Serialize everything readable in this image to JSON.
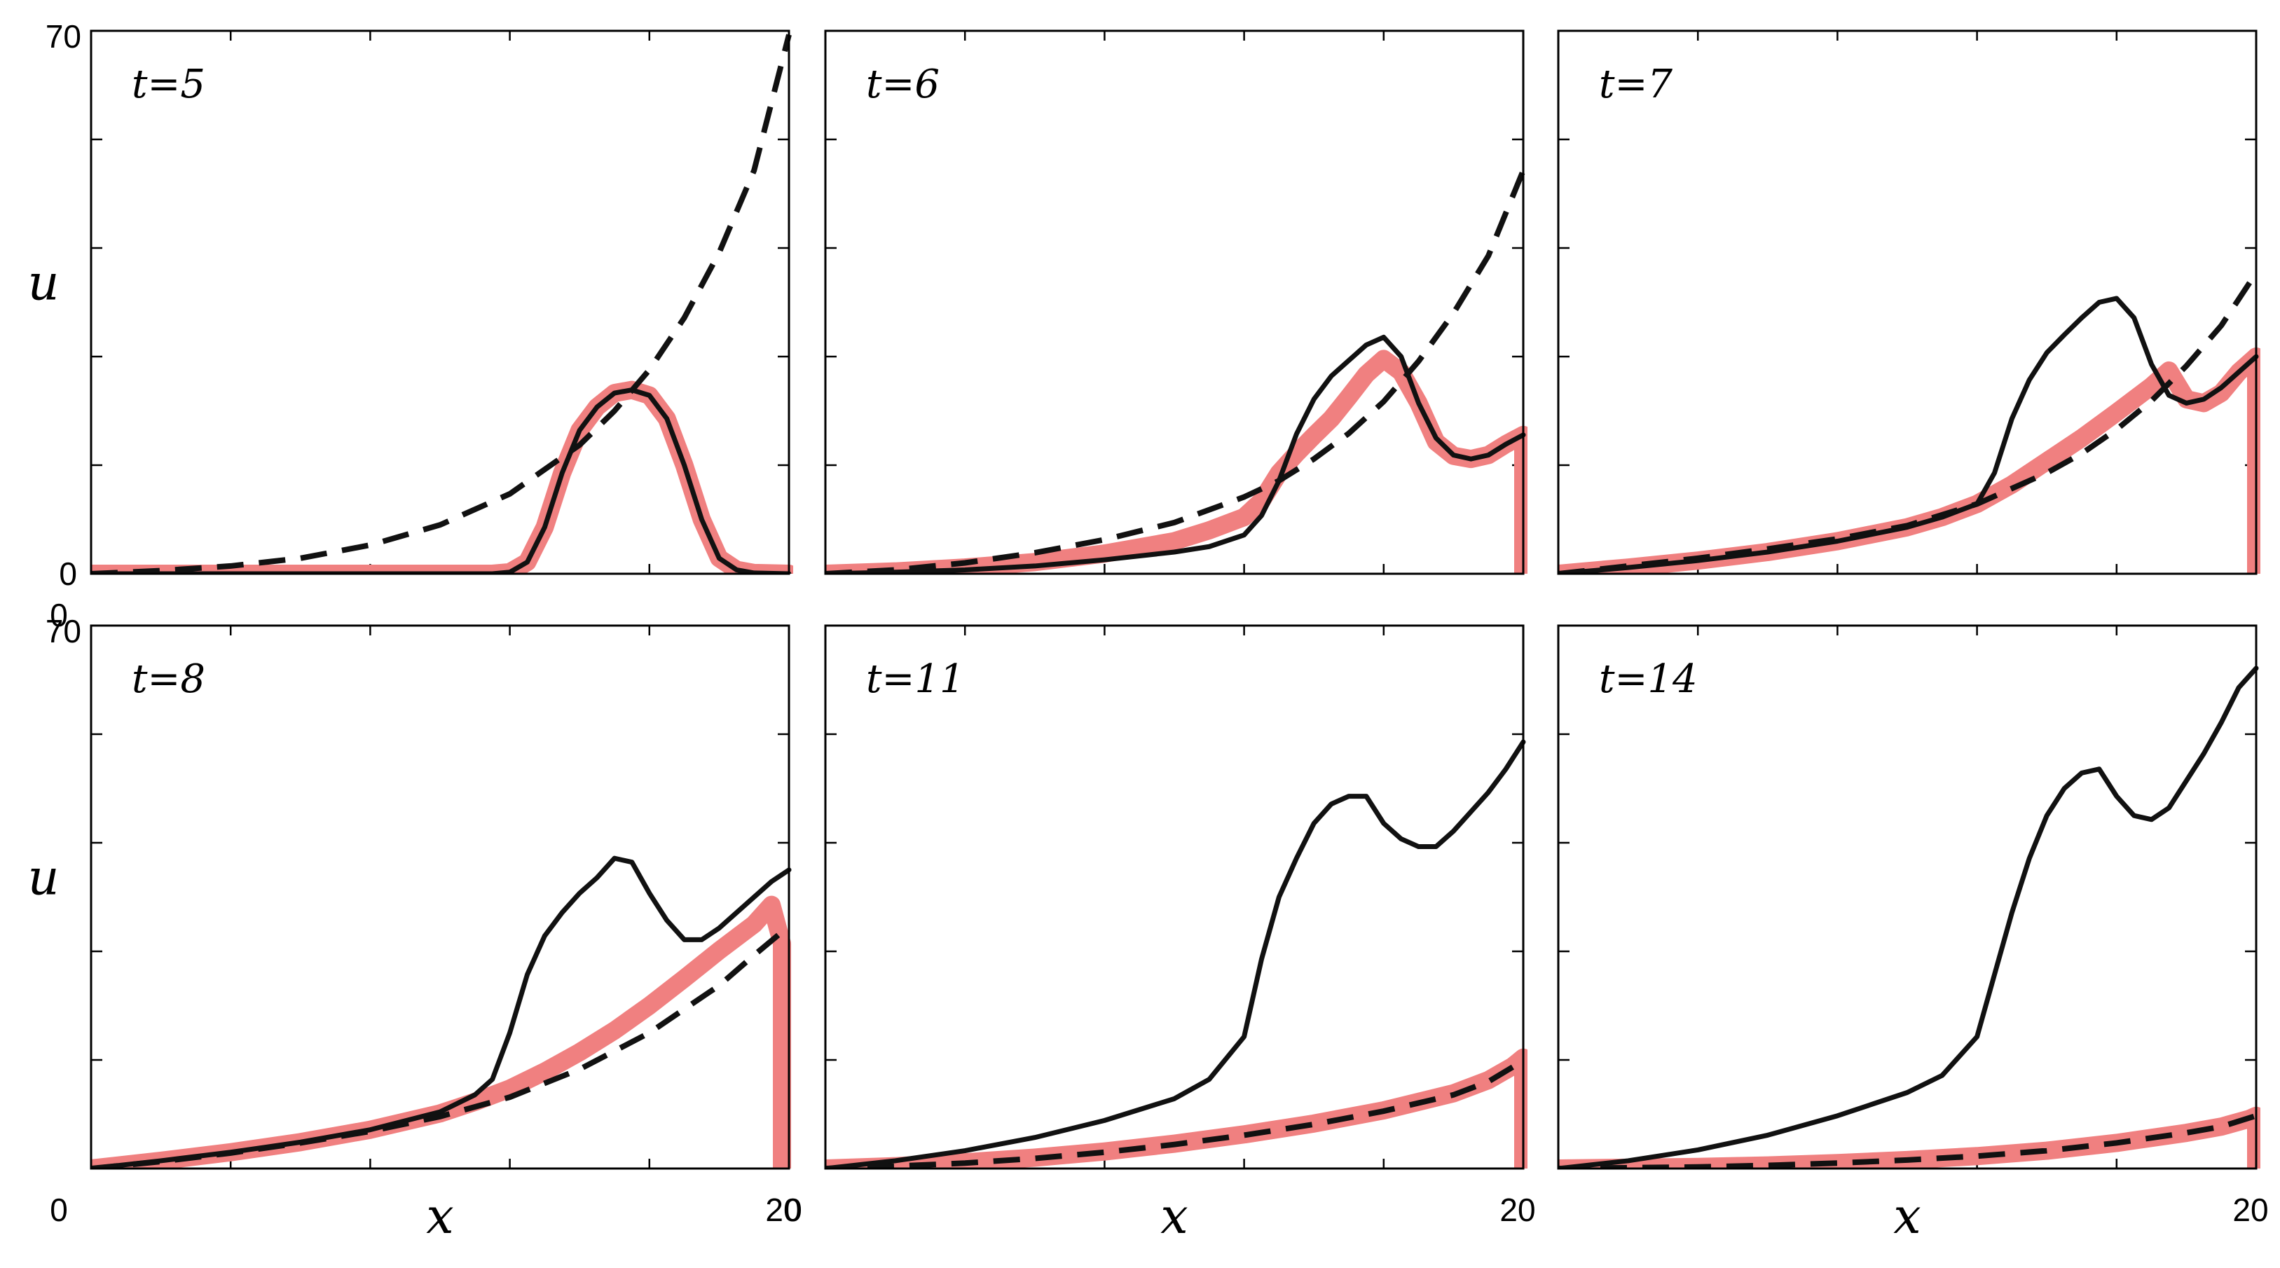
{
  "chart_data": [
    {
      "type": "line",
      "label": "t=5",
      "xlim": [
        0,
        20
      ],
      "ylim": [
        0,
        70
      ],
      "x_ticks": [
        "0",
        "20"
      ],
      "y_ticks": [
        "0",
        "70"
      ],
      "ylabel": "u",
      "series": [
        {
          "style": "red-thick",
          "x": [
            0,
            2,
            4,
            6,
            8,
            10,
            11,
            11.5,
            12,
            12.5,
            13,
            13.5,
            14,
            14.5,
            15,
            15.5,
            16,
            16.5,
            17,
            17.5,
            18,
            18.5,
            19,
            20
          ],
          "y": [
            0,
            0,
            0,
            0,
            0,
            0,
            0,
            0,
            0.2,
            1.5,
            6,
            13,
            18.5,
            21.5,
            23.3,
            23.7,
            23,
            20,
            14,
            7,
            2,
            0.5,
            0.1,
            0
          ]
        },
        {
          "style": "black-solid",
          "x": [
            0,
            2,
            4,
            6,
            8,
            10,
            11,
            11.5,
            12,
            12.5,
            13,
            13.5,
            14,
            14.5,
            15,
            15.5,
            16,
            16.5,
            17,
            17.5,
            18,
            18.5,
            19,
            20
          ],
          "y": [
            0,
            0,
            0,
            0,
            0,
            0,
            0,
            0,
            0.2,
            1.5,
            6,
            13,
            18.5,
            21.5,
            23.3,
            23.7,
            23,
            20,
            14,
            7,
            2,
            0.5,
            0.1,
            0
          ]
        },
        {
          "style": "black-dashed",
          "x": [
            0,
            2,
            4,
            6,
            8,
            10,
            12,
            14,
            15,
            16,
            17,
            18,
            19,
            20
          ],
          "y": [
            0,
            0.4,
            1,
            2,
            3.7,
            6.3,
            10.3,
            16.6,
            21,
            26.3,
            33,
            41.4,
            52,
            69.5
          ]
        }
      ]
    },
    {
      "type": "line",
      "label": "t=6",
      "xlim": [
        0,
        20
      ],
      "ylim": [
        0,
        70
      ],
      "x_ticks": [
        "",
        "20"
      ],
      "y_ticks": [
        "",
        ""
      ],
      "series": [
        {
          "style": "red-thick",
          "x": [
            0,
            2,
            4,
            6,
            8,
            10,
            11,
            12,
            12.5,
            13,
            13.5,
            14,
            14.5,
            15,
            15.5,
            16,
            16.5,
            17,
            17.5,
            18,
            18.5,
            19,
            19.5,
            20,
            20
          ],
          "y": [
            0,
            0.3,
            0.8,
            1.5,
            2.6,
            4.2,
            5.6,
            7.3,
            9.4,
            13,
            15.5,
            17.8,
            20,
            22.8,
            25.7,
            27.7,
            26,
            22,
            17,
            15.2,
            14.8,
            15.3,
            16.7,
            17.9,
            0
          ]
        },
        {
          "style": "black-solid",
          "x": [
            0,
            2,
            4,
            6,
            8,
            10,
            11,
            12,
            12.5,
            13,
            13.5,
            14,
            14.5,
            15,
            15.5,
            16,
            16.5,
            17,
            17.5,
            18,
            18.5,
            19,
            19.5,
            20
          ],
          "y": [
            0,
            0.2,
            0.5,
            1,
            1.8,
            2.8,
            3.5,
            5,
            7.5,
            12,
            18,
            22.5,
            25.5,
            27.5,
            29.5,
            30.5,
            28,
            22,
            17.5,
            15.3,
            14.8,
            15.3,
            16.7,
            17.9
          ]
        },
        {
          "style": "black-dashed",
          "x": [
            0,
            2,
            4,
            6,
            8,
            10,
            12,
            13,
            14,
            15,
            16,
            17,
            18,
            19,
            20
          ],
          "y": [
            0,
            0.5,
            1.4,
            2.7,
            4.4,
            6.6,
            9.9,
            12,
            14.8,
            18.1,
            22.2,
            27.4,
            33.6,
            41,
            52
          ]
        }
      ]
    },
    {
      "type": "line",
      "label": "t=7",
      "xlim": [
        0,
        20
      ],
      "ylim": [
        0,
        70
      ],
      "x_ticks": [
        "",
        "20"
      ],
      "y_ticks": [
        "",
        ""
      ],
      "series": [
        {
          "style": "red-thick",
          "x": [
            0,
            2,
            4,
            6,
            8,
            10,
            11,
            12,
            13,
            14,
            15,
            16,
            17,
            17.5,
            18,
            18.5,
            19,
            19.5,
            20,
            20
          ],
          "y": [
            0,
            0.8,
            1.7,
            2.8,
            4.2,
            6,
            7.3,
            9,
            11.5,
            14.5,
            17.5,
            20.8,
            24.2,
            26.2,
            22.5,
            22,
            23.3,
            26,
            28,
            0
          ]
        },
        {
          "style": "black-solid",
          "x": [
            0,
            2,
            4,
            6,
            8,
            10,
            11,
            12,
            12.5,
            13,
            13.5,
            14,
            14.5,
            15,
            15.5,
            16,
            16.5,
            17,
            17.5,
            18,
            18.5,
            19,
            19.5,
            20
          ],
          "y": [
            0,
            0.8,
            1.7,
            2.8,
            4.2,
            6,
            7.3,
            9,
            13,
            20,
            25,
            28.5,
            30.8,
            33,
            35,
            35.5,
            33,
            27,
            23,
            22,
            22.5,
            24,
            26,
            28
          ]
        },
        {
          "style": "black-dashed",
          "x": [
            0,
            2,
            4,
            6,
            8,
            10,
            12,
            14,
            15,
            16,
            17,
            18,
            19,
            20
          ],
          "y": [
            0,
            1,
            2,
            3.2,
            4.5,
            6.2,
            9,
            13,
            15.5,
            18.6,
            22.3,
            26.8,
            32,
            38.8
          ]
        }
      ]
    },
    {
      "type": "line",
      "label": "t=8",
      "xlim": [
        0,
        20
      ],
      "ylim": [
        0,
        70
      ],
      "x_ticks": [
        "0",
        "20"
      ],
      "y_ticks": [
        "",
        "70"
      ],
      "xlabel": "x",
      "ylabel": "u",
      "series": [
        {
          "style": "red-thick",
          "x": [
            0,
            2,
            4,
            6,
            8,
            10,
            11,
            12,
            13,
            14,
            15,
            16,
            17,
            18,
            19,
            19.5,
            19.8,
            19.8
          ],
          "y": [
            0,
            1,
            2.1,
            3.4,
            5,
            7.1,
            8.6,
            10.3,
            12.5,
            15,
            17.8,
            21,
            24.5,
            28.1,
            31.5,
            34,
            29,
            0
          ]
        },
        {
          "style": "black-solid",
          "x": [
            0,
            2,
            4,
            6,
            8,
            10,
            11,
            11.5,
            12,
            12.5,
            13,
            13.5,
            14,
            14.5,
            15,
            15.5,
            16,
            16.5,
            17,
            17.5,
            18,
            18.5,
            19,
            19.5,
            20
          ],
          "y": [
            0,
            1,
            2.1,
            3.4,
            5,
            7.3,
            9.5,
            11.5,
            17.5,
            25,
            30,
            33,
            35.5,
            37.5,
            40,
            39.5,
            35.5,
            32,
            29.5,
            29.5,
            31,
            33,
            35,
            37,
            38.5
          ]
        },
        {
          "style": "black-dashed",
          "x": [
            0,
            2,
            4,
            6,
            8,
            10,
            12,
            14,
            16,
            18,
            19,
            19.8
          ],
          "y": [
            0,
            0.9,
            2,
            3.3,
            4.8,
            6.7,
            9.2,
            12.8,
            17.5,
            23.6,
            27.5,
            30.5
          ]
        }
      ]
    },
    {
      "type": "line",
      "label": "t=11",
      "xlim": [
        0,
        20
      ],
      "ylim": [
        0,
        70
      ],
      "x_ticks": [
        "0",
        "20"
      ],
      "y_ticks": [
        "",
        ""
      ],
      "xlabel": "x",
      "series": [
        {
          "style": "red-thick",
          "x": [
            0,
            2,
            4,
            6,
            8,
            10,
            12,
            14,
            16,
            18,
            19,
            19.7,
            20,
            20
          ],
          "y": [
            0,
            0.3,
            0.8,
            1.4,
            2.2,
            3.2,
            4.4,
            5.8,
            7.5,
            9.7,
            11.4,
            13.2,
            14.3,
            0
          ]
        },
        {
          "style": "black-solid",
          "x": [
            0,
            2,
            4,
            6,
            8,
            10,
            11,
            12,
            12.5,
            13,
            13.5,
            14,
            14.5,
            15,
            15.5,
            16,
            16.5,
            17,
            17.5,
            18,
            18.5,
            19,
            19.5,
            20
          ],
          "y": [
            0,
            1,
            2.3,
            4,
            6.2,
            9,
            11.5,
            17,
            27,
            35,
            40,
            44.5,
            47,
            48,
            48,
            44.5,
            42.5,
            41.5,
            41.5,
            43.5,
            46,
            48.5,
            51.5,
            55
          ]
        },
        {
          "style": "black-dashed",
          "x": [
            0,
            2,
            4,
            6,
            8,
            10,
            12,
            14,
            16,
            18,
            19,
            20
          ],
          "y": [
            0,
            0.3,
            0.7,
            1.3,
            2.1,
            3.1,
            4.3,
            5.7,
            7.4,
            9.5,
            11.2,
            13.9
          ]
        }
      ]
    },
    {
      "type": "line",
      "label": "t=14",
      "xlim": [
        0,
        20
      ],
      "ylim": [
        0,
        70
      ],
      "x_ticks": [
        "",
        "20"
      ],
      "y_ticks": [
        "",
        ""
      ],
      "xlabel": "x",
      "series": [
        {
          "style": "red-thick",
          "x": [
            0,
            2,
            4,
            6,
            8,
            10,
            12,
            14,
            16,
            18,
            19,
            19.8,
            20,
            20
          ],
          "y": [
            0,
            0.1,
            0.2,
            0.4,
            0.7,
            1.1,
            1.6,
            2.3,
            3.3,
            4.6,
            5.4,
            6.4,
            6.8,
            0
          ]
        },
        {
          "style": "black-solid",
          "x": [
            0,
            2,
            4,
            6,
            8,
            10,
            11,
            12,
            12.5,
            13,
            13.5,
            14,
            14.5,
            15,
            15.5,
            16,
            16.5,
            17,
            17.5,
            18,
            18.5,
            19,
            19.5,
            20
          ],
          "y": [
            0,
            1,
            2.4,
            4.3,
            6.8,
            9.8,
            12,
            17,
            25,
            33,
            40,
            45.5,
            49,
            51,
            51.5,
            48,
            45.5,
            45,
            46.5,
            50,
            53.5,
            57.5,
            62,
            64.5
          ]
        },
        {
          "style": "black-dashed",
          "x": [
            0,
            2,
            4,
            6,
            8,
            10,
            12,
            14,
            16,
            18,
            19,
            20
          ],
          "y": [
            0,
            0.1,
            0.2,
            0.4,
            0.7,
            1.1,
            1.6,
            2.3,
            3.3,
            4.6,
            5.4,
            6.8
          ]
        }
      ]
    }
  ]
}
